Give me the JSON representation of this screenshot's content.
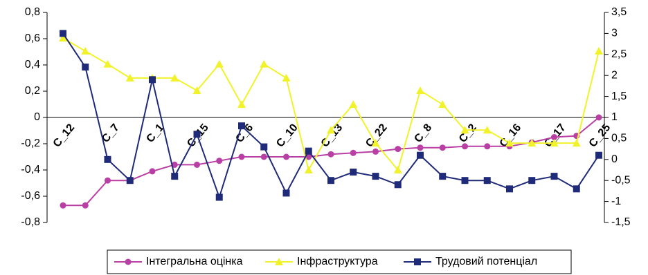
{
  "chart_data": {
    "type": "line",
    "categories": [
      "C_12",
      null,
      "C_7",
      null,
      "C_1",
      null,
      "C_15",
      null,
      "C_6",
      null,
      "C_10",
      null,
      "C_13",
      null,
      "C_22",
      null,
      "C_8",
      null,
      "C_2",
      null,
      "C_16",
      null,
      "C_17",
      null,
      "C_25"
    ],
    "series": [
      {
        "name": "Інтегральна оцінка",
        "color": "#b93fa4",
        "marker": "circle",
        "values": [
          -0.67,
          -0.67,
          -0.48,
          -0.48,
          -0.41,
          -0.36,
          -0.36,
          -0.33,
          -0.3,
          -0.3,
          -0.3,
          -0.3,
          -0.28,
          -0.27,
          -0.26,
          -0.24,
          -0.23,
          -0.23,
          -0.22,
          -0.22,
          -0.22,
          -0.19,
          -0.15,
          -0.14,
          0
        ]
      },
      {
        "name": "Інфраструктура",
        "color": "#f2f22a",
        "marker": "triangle",
        "axis": "y2",
        "values": [
          2.89,
          2.58,
          2.27,
          1.94,
          1.94,
          1.94,
          1.64,
          2.27,
          1.31,
          2.27,
          1.94,
          -0.25,
          0.7,
          1.31,
          0.39,
          -0.25,
          1.64,
          1.31,
          0.7,
          0.7,
          0.39,
          0.39,
          0.39,
          0.39,
          2.58
        ]
      },
      {
        "name": "Трудовий потенціал",
        "color": "#1f2a78",
        "marker": "square",
        "axis": "y2",
        "values": [
          3.0,
          2.2,
          0.0,
          -0.5,
          1.9,
          -0.4,
          0.6,
          -0.9,
          0.8,
          0.3,
          -0.8,
          0.2,
          -0.5,
          -0.3,
          -0.4,
          -0.6,
          0.1,
          -0.4,
          -0.5,
          -0.5,
          -0.7,
          -0.5,
          -0.4,
          -0.7,
          0.1
        ]
      }
    ],
    "ylim": [
      -0.8,
      0.8
    ],
    "yticks": [
      {
        "value": -0.8,
        "label": "-0,8"
      },
      {
        "value": -0.6,
        "label": "-0,6"
      },
      {
        "value": -0.4,
        "label": "-0,4"
      },
      {
        "value": -0.2,
        "label": "-0,2"
      },
      0,
      {
        "value": 0.2,
        "label": "0,2"
      },
      {
        "value": 0.4,
        "label": "0,4"
      },
      {
        "value": 0.6,
        "label": "0,6"
      },
      {
        "value": 0.8,
        "label": "0,8"
      }
    ],
    "y2lim": [
      -1.5,
      3.5
    ],
    "y2ticks": [
      {
        "value": -1.5,
        "label": "-1,5"
      },
      -1,
      {
        "value": -0.5,
        "label": "-0,5"
      },
      0,
      {
        "value": 0.5,
        "label": "0,5"
      },
      1,
      {
        "value": 1.5,
        "label": "1,5"
      },
      2,
      {
        "value": 2.5,
        "label": "2,5"
      },
      3,
      {
        "value": 3.5,
        "label": "3,5"
      }
    ],
    "legend": "bottom"
  }
}
